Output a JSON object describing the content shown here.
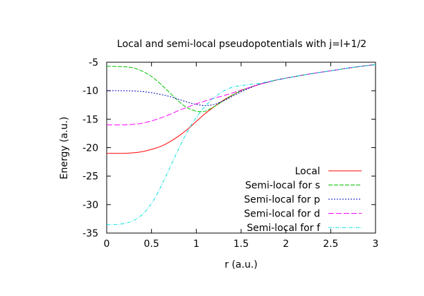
{
  "chart_data": {
    "type": "line",
    "title": "Local and semi-local pseudopotentials with j=l+1/2",
    "xlabel": "r (a.u.)",
    "ylabel": "Energy (a.u.)",
    "xlim": [
      0,
      3
    ],
    "ylim": [
      -35,
      -5
    ],
    "xticks": [
      0,
      0.5,
      1,
      1.5,
      2,
      2.5,
      3
    ],
    "xtick_labels": [
      "0",
      "0.5",
      "1",
      "1.5",
      "2",
      "2.5",
      "3"
    ],
    "yticks": [
      -35,
      -30,
      -25,
      -20,
      -15,
      -10,
      -5
    ],
    "ytick_labels": [
      "-35",
      "-30",
      "-25",
      "-20",
      "-15",
      "-10",
      "-5"
    ],
    "grid": false,
    "legend_position": "bottom-right",
    "series": [
      {
        "name": "Local",
        "color": "#ff0000",
        "dash": "solid",
        "x": [
          0,
          0.1,
          0.2,
          0.3,
          0.4,
          0.5,
          0.6,
          0.7,
          0.8,
          0.9,
          1.0,
          1.1,
          1.2,
          1.3,
          1.4,
          1.5,
          1.6,
          1.7,
          1.8,
          1.9,
          2.0,
          2.25,
          2.5,
          2.75,
          3.0
        ],
        "y": [
          -21,
          -21,
          -21,
          -20.9,
          -20.7,
          -20.3,
          -19.8,
          -19.0,
          -18.0,
          -16.8,
          -15.4,
          -14.0,
          -12.8,
          -11.7,
          -10.8,
          -10.0,
          -9.4,
          -8.9,
          -8.5,
          -8.1,
          -7.8,
          -7.1,
          -6.5,
          -5.9,
          -5.4
        ]
      },
      {
        "name": "Semi-local for s",
        "color": "#00c000",
        "dash": "6,2",
        "x": [
          0,
          0.1,
          0.2,
          0.3,
          0.4,
          0.5,
          0.6,
          0.7,
          0.8,
          0.9,
          1.0,
          1.05,
          1.1,
          1.2,
          1.3,
          1.4,
          1.5,
          1.6,
          1.7,
          1.8,
          1.9,
          2.0,
          2.25,
          2.5,
          2.75,
          3.0
        ],
        "y": [
          -5.7,
          -5.75,
          -5.8,
          -6.0,
          -6.6,
          -7.5,
          -8.8,
          -10.3,
          -11.8,
          -13.0,
          -13.6,
          -13.7,
          -13.6,
          -12.8,
          -11.8,
          -10.8,
          -10.0,
          -9.4,
          -8.9,
          -8.5,
          -8.1,
          -7.8,
          -7.1,
          -6.5,
          -5.9,
          -5.4
        ]
      },
      {
        "name": "Semi-local for p",
        "color": "#0000c0",
        "dash": "2,2",
        "x": [
          0,
          0.1,
          0.2,
          0.3,
          0.4,
          0.5,
          0.6,
          0.7,
          0.8,
          0.9,
          1.0,
          1.1,
          1.2,
          1.3,
          1.4,
          1.5,
          1.6,
          1.7,
          1.8,
          1.9,
          2.0,
          2.25,
          2.5,
          2.75,
          3.0
        ],
        "y": [
          -10,
          -10,
          -10,
          -10.05,
          -10.15,
          -10.35,
          -10.65,
          -11.0,
          -11.5,
          -12.0,
          -12.4,
          -12.6,
          -12.4,
          -11.8,
          -11.0,
          -10.2,
          -9.5,
          -8.9,
          -8.5,
          -8.1,
          -7.8,
          -7.1,
          -6.5,
          -5.9,
          -5.4
        ]
      },
      {
        "name": "Semi-local for d",
        "color": "#ff00ff",
        "dash": "8,3",
        "x": [
          0,
          0.1,
          0.2,
          0.3,
          0.4,
          0.5,
          0.6,
          0.7,
          0.8,
          0.9,
          1.0,
          1.1,
          1.2,
          1.3,
          1.4,
          1.5,
          1.6,
          1.7,
          1.8,
          1.9,
          2.0,
          2.25,
          2.5,
          2.75,
          3.0
        ],
        "y": [
          -16,
          -16,
          -16,
          -15.9,
          -15.7,
          -15.3,
          -14.8,
          -14.2,
          -13.5,
          -12.9,
          -12.3,
          -11.8,
          -11.3,
          -10.9,
          -10.4,
          -9.9,
          -9.4,
          -8.9,
          -8.5,
          -8.1,
          -7.8,
          -7.1,
          -6.5,
          -5.9,
          -5.4
        ]
      },
      {
        "name": "Semi-local for f",
        "color": "#00e0e0",
        "dash": "5,2,1,2",
        "x": [
          0,
          0.1,
          0.2,
          0.3,
          0.4,
          0.5,
          0.6,
          0.7,
          0.8,
          0.9,
          1.0,
          1.1,
          1.2,
          1.3,
          1.4,
          1.5,
          1.6,
          1.7,
          1.8,
          1.9,
          2.0,
          2.25,
          2.5,
          2.75,
          3.0
        ],
        "y": [
          -33.5,
          -33.5,
          -33.3,
          -32.8,
          -31.7,
          -29.8,
          -27.0,
          -23.7,
          -20.3,
          -17.2,
          -14.7,
          -12.7,
          -11.2,
          -10.1,
          -9.4,
          -9.1,
          -8.9,
          -8.7,
          -8.4,
          -8.1,
          -7.8,
          -7.1,
          -6.5,
          -5.9,
          -5.4
        ]
      }
    ]
  }
}
